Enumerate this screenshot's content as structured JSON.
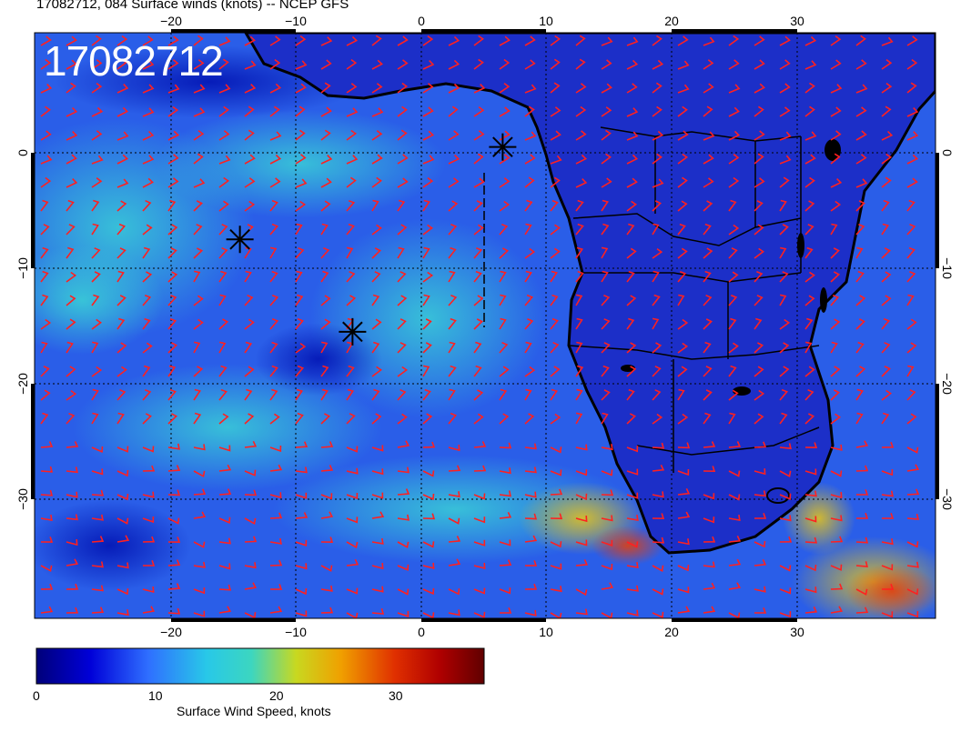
{
  "title": "17082712, 084 Surface winds (knots) -- NCEP GFS",
  "stamp": "17082712",
  "lon_ticks": [
    "−20",
    "−10",
    "0",
    "10",
    "20",
    "30"
  ],
  "lat_ticks": [
    "0",
    "−10",
    "−20",
    "−30"
  ],
  "colorbar": {
    "title": "Surface Wind Speed, knots",
    "ticks": [
      "0",
      "10",
      "20",
      "30"
    ],
    "range": [
      0,
      37
    ],
    "colors": [
      "#00007a",
      "#0000d8",
      "#2f6fff",
      "#28c8e8",
      "#3cd6c0",
      "#c8d820",
      "#f0a000",
      "#e03000",
      "#b00000",
      "#600000"
    ]
  },
  "markers": [
    {
      "name": "storm-marker",
      "lon": -14.5,
      "lat": -7.5
    },
    {
      "name": "storm-marker",
      "lon": -5.5,
      "lat": -15.5
    },
    {
      "name": "storm-marker",
      "lon": 6.5,
      "lat": 0.5
    }
  ]
}
